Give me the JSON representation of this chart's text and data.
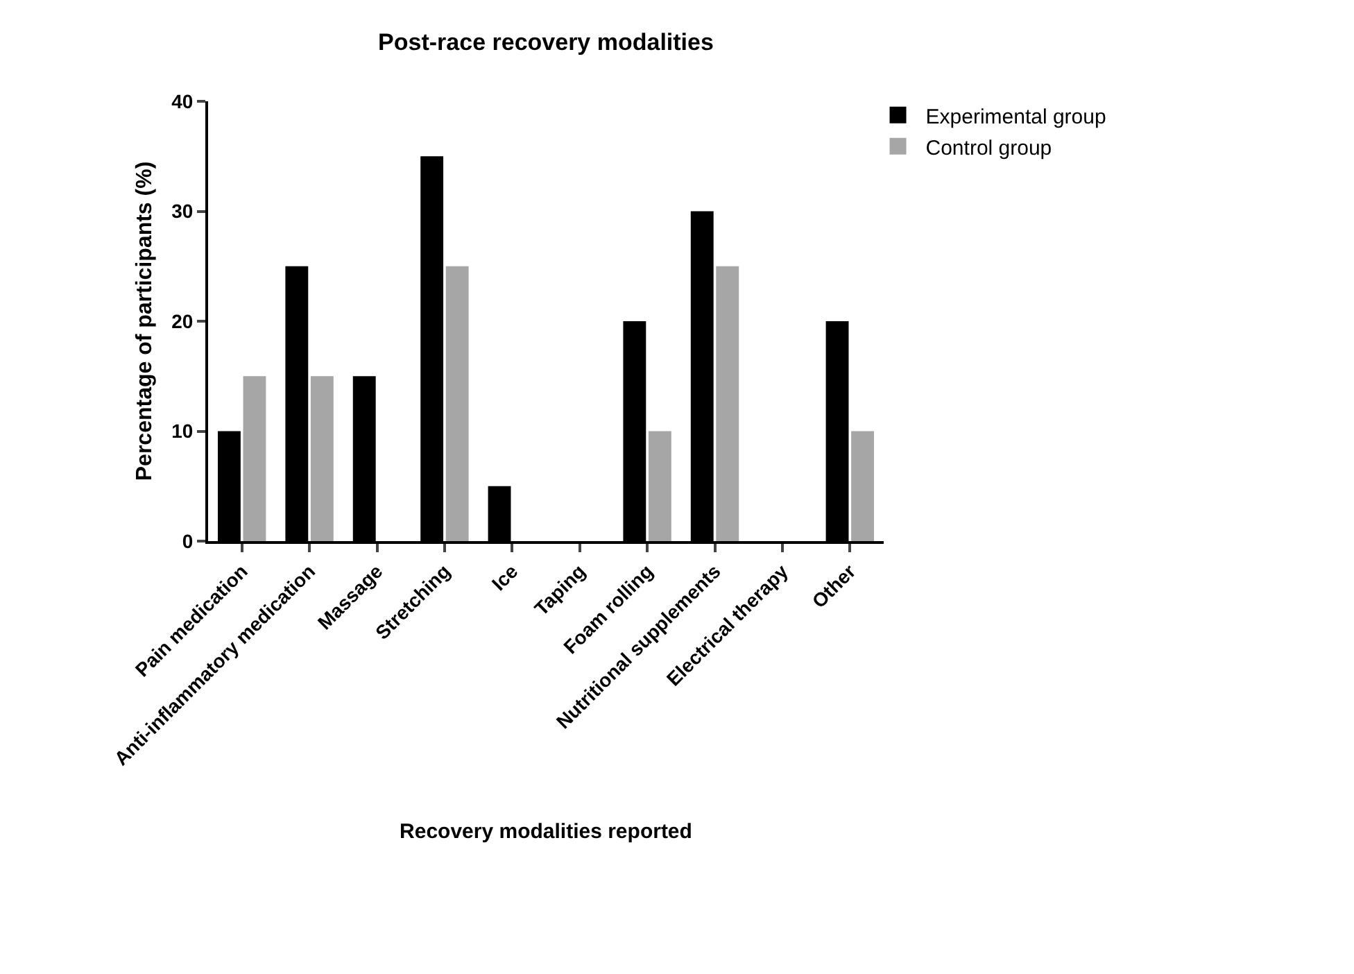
{
  "chart_data": {
    "type": "bar",
    "title": "Post-race recovery modalities",
    "xlabel": "Recovery modalities reported",
    "ylabel": "Percentage of participants (%)",
    "categories": [
      "Pain medication",
      "Anti-inflammatory medication",
      "Massage",
      "Stretching",
      "Ice",
      "Taping",
      "Foam rolling",
      "Nutritional supplements",
      "Electrical therapy",
      "Other"
    ],
    "series": [
      {
        "name": "Experimental group",
        "color": "#000000",
        "values": [
          10,
          25,
          15,
          35,
          5,
          0,
          20,
          30,
          0,
          20
        ]
      },
      {
        "name": "Control group",
        "color": "#a6a6a6",
        "values": [
          15,
          15,
          0,
          25,
          0,
          0,
          10,
          25,
          0,
          10
        ]
      }
    ],
    "ylim": [
      0,
      40
    ],
    "yticks": [
      0,
      10,
      20,
      30,
      40
    ],
    "legend": "top right"
  }
}
